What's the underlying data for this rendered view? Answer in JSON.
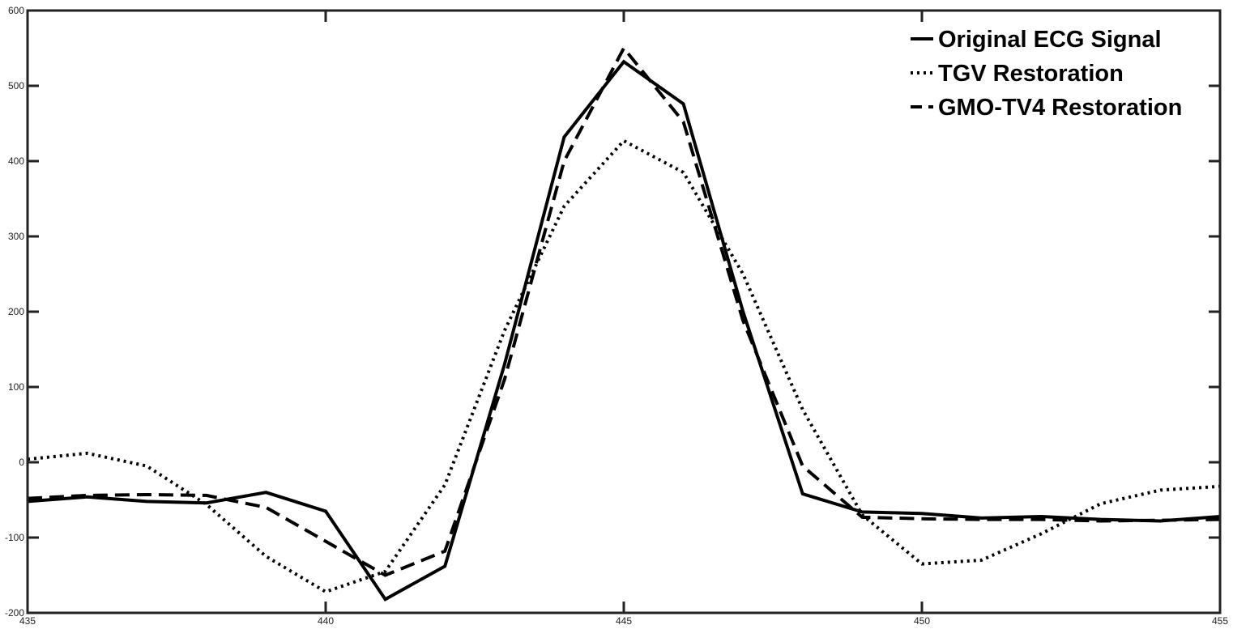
{
  "chart_data": {
    "type": "line",
    "title": "",
    "xlabel": "",
    "ylabel": "",
    "xlim": [
      435,
      455
    ],
    "ylim": [
      -200,
      600
    ],
    "x_ticks": [
      435,
      440,
      445,
      450,
      455
    ],
    "y_ticks": [
      -200,
      -100,
      0,
      100,
      200,
      300,
      400,
      500,
      600
    ],
    "x_tick_labels": [
      "435",
      "440",
      "445",
      "450",
      "455"
    ],
    "y_tick_labels": [
      "-200",
      "-100",
      "0",
      "100",
      "200",
      "300",
      "400",
      "500",
      "600"
    ],
    "grid": false,
    "legend_position": "top-right",
    "x": [
      435,
      436,
      437,
      438,
      439,
      440,
      441,
      442,
      443,
      444,
      445,
      446,
      447,
      448,
      449,
      450,
      451,
      452,
      453,
      454,
      455
    ],
    "series": [
      {
        "name": "Original ECG Signal",
        "style": "solid",
        "color": "#000000",
        "values": [
          -52,
          -46,
          -52,
          -54,
          -40,
          -65,
          -182,
          -138,
          130,
          432,
          532,
          476,
          200,
          -42,
          -66,
          -68,
          -74,
          -72,
          -76,
          -78,
          -72
        ]
      },
      {
        "name": "TGV Restoration",
        "style": "dotted",
        "color": "#000000",
        "values": [
          4,
          12,
          -5,
          -56,
          -125,
          -172,
          -145,
          -30,
          175,
          340,
          427,
          385,
          250,
          70,
          -70,
          -135,
          -130,
          -95,
          -55,
          -37,
          -32
        ]
      },
      {
        "name": "GMO-TV4 Restoration",
        "style": "dashed",
        "color": "#000000",
        "values": [
          -48,
          -44,
          -43,
          -44,
          -60,
          -105,
          -150,
          -118,
          110,
          400,
          550,
          452,
          188,
          -5,
          -73,
          -75,
          -76,
          -76,
          -78,
          -77,
          -76
        ]
      }
    ]
  }
}
